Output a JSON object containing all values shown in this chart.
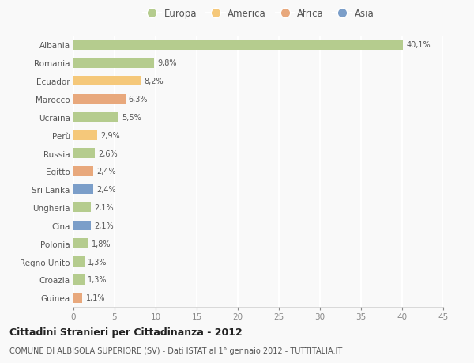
{
  "countries": [
    "Albania",
    "Romania",
    "Ecuador",
    "Marocco",
    "Ucraina",
    "Perù",
    "Russia",
    "Egitto",
    "Sri Lanka",
    "Ungheria",
    "Cina",
    "Polonia",
    "Regno Unito",
    "Croazia",
    "Guinea"
  ],
  "values": [
    40.1,
    9.8,
    8.2,
    6.3,
    5.5,
    2.9,
    2.6,
    2.4,
    2.4,
    2.1,
    2.1,
    1.8,
    1.3,
    1.3,
    1.1
  ],
  "labels": [
    "40,1%",
    "9,8%",
    "8,2%",
    "6,3%",
    "5,5%",
    "2,9%",
    "2,6%",
    "2,4%",
    "2,4%",
    "2,1%",
    "2,1%",
    "1,8%",
    "1,3%",
    "1,3%",
    "1,1%"
  ],
  "colors": [
    "#b5cc8e",
    "#b5cc8e",
    "#f5c87a",
    "#e8a87c",
    "#b5cc8e",
    "#f5c87a",
    "#b5cc8e",
    "#e8a87c",
    "#7b9ec9",
    "#b5cc8e",
    "#7b9ec9",
    "#b5cc8e",
    "#b5cc8e",
    "#b5cc8e",
    "#e8a87c"
  ],
  "legend": [
    {
      "label": "Europa",
      "color": "#b5cc8e"
    },
    {
      "label": "America",
      "color": "#f5c87a"
    },
    {
      "label": "Africa",
      "color": "#e8a87c"
    },
    {
      "label": "Asia",
      "color": "#7b9ec9"
    }
  ],
  "xlim": [
    0,
    45
  ],
  "xticks": [
    0,
    5,
    10,
    15,
    20,
    25,
    30,
    35,
    40,
    45
  ],
  "title": "Cittadini Stranieri per Cittadinanza - 2012",
  "subtitle": "COMUNE DI ALBISOLA SUPERIORE (SV) - Dati ISTAT al 1° gennaio 2012 - TUTTITALIA.IT",
  "bg_color": "#f9f9f9",
  "grid_color": "#ffffff",
  "bar_height": 0.55
}
